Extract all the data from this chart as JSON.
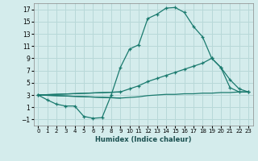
{
  "xlabel": "Humidex (Indice chaleur)",
  "bg_color": "#d4ecec",
  "grid_color": "#b8d8d8",
  "line_color": "#1a7a6e",
  "xlim": [
    -0.5,
    23.5
  ],
  "ylim": [
    -2,
    18
  ],
  "yticks": [
    -1,
    1,
    3,
    5,
    7,
    9,
    11,
    13,
    15,
    17
  ],
  "xticks": [
    0,
    1,
    2,
    3,
    4,
    5,
    6,
    7,
    8,
    9,
    10,
    11,
    12,
    13,
    14,
    15,
    16,
    17,
    18,
    19,
    20,
    21,
    22,
    23
  ],
  "line1_x": [
    0,
    1,
    2,
    3,
    4,
    5,
    6,
    7,
    8,
    9,
    10,
    11,
    12,
    13,
    14,
    15,
    16,
    17,
    18,
    19,
    20,
    21,
    22,
    23
  ],
  "line1_y": [
    3.0,
    2.2,
    1.5,
    1.2,
    1.2,
    -0.5,
    -0.8,
    -0.7,
    3.0,
    7.5,
    10.5,
    11.2,
    15.5,
    16.2,
    17.2,
    17.3,
    16.5,
    14.2,
    12.5,
    9.0,
    7.5,
    5.5,
    4.0,
    3.5
  ],
  "line2_x": [
    0,
    9,
    10,
    11,
    12,
    13,
    14,
    15,
    16,
    17,
    18,
    19,
    20,
    21,
    22,
    23
  ],
  "line2_y": [
    3.0,
    3.5,
    4.0,
    4.5,
    5.2,
    5.7,
    6.2,
    6.7,
    7.2,
    7.7,
    8.2,
    9.0,
    7.5,
    4.2,
    3.5,
    3.5
  ],
  "line3_x": [
    0,
    9,
    10,
    11,
    12,
    13,
    14,
    15,
    16,
    17,
    18,
    19,
    20,
    21,
    22,
    23
  ],
  "line3_y": [
    3.0,
    2.5,
    2.6,
    2.7,
    2.9,
    3.0,
    3.1,
    3.1,
    3.2,
    3.2,
    3.3,
    3.3,
    3.4,
    3.4,
    3.5,
    3.5
  ]
}
